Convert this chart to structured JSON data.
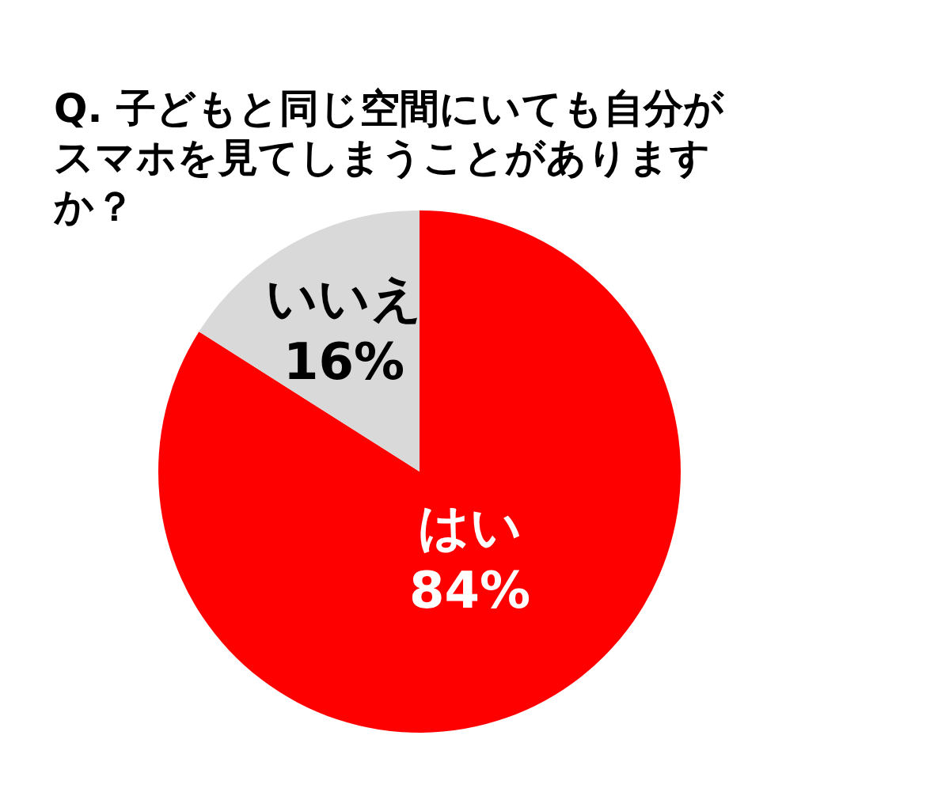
{
  "chart_data": {
    "type": "pie",
    "title": "Q. 子どもと同じ空間にいても自分がスマホを見てしまうことがありますか？",
    "categories": [
      "はい",
      "いいえ"
    ],
    "values": [
      84,
      16
    ],
    "colors": [
      "#ff0000",
      "#d9d9d9"
    ],
    "value_labels": [
      "84%",
      "16%"
    ],
    "legend": false
  }
}
